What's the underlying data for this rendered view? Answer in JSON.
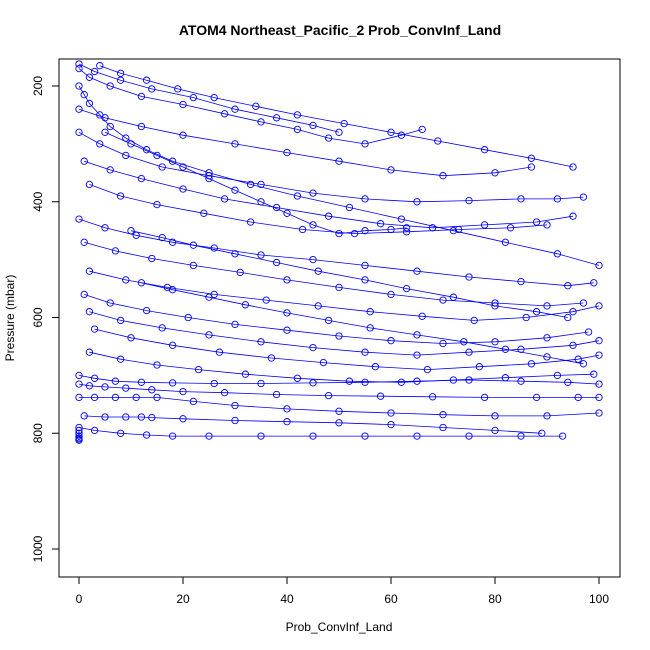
{
  "chart_data": {
    "type": "line",
    "title": "ATOM4 Northeast_Pacific_2 Prob_ConvInf_Land",
    "xlabel": "Prob_ConvInf_Land",
    "ylabel": "Pressure (mbar)",
    "xlim": [
      0,
      100
    ],
    "ylim": [
      1045,
      160
    ],
    "y_reversed": true,
    "x_ticks": [
      0,
      20,
      40,
      60,
      80,
      100
    ],
    "y_ticks": [
      200,
      400,
      600,
      800,
      1000
    ],
    "grid": false,
    "legend": "none",
    "marker": "open-circle",
    "series_color": "#0000ff",
    "series": [
      {
        "x": [
          0,
          3,
          8,
          14,
          22,
          30,
          38,
          45,
          50
        ],
        "y": [
          162,
          175,
          190,
          205,
          220,
          240,
          255,
          268,
          280
        ]
      },
      {
        "x": [
          0,
          2,
          6,
          12,
          20,
          28,
          35,
          42,
          48,
          55,
          62,
          66
        ],
        "y": [
          170,
          185,
          200,
          218,
          232,
          248,
          262,
          275,
          290,
          300,
          285,
          275
        ]
      },
      {
        "x": [
          0,
          5,
          12,
          20,
          30,
          40,
          50,
          60,
          70,
          80,
          87
        ],
        "y": [
          240,
          255,
          270,
          285,
          300,
          315,
          330,
          345,
          355,
          350,
          340
        ]
      },
      {
        "x": [
          0,
          4,
          9,
          16,
          25,
          35,
          45,
          55,
          65,
          75,
          85,
          92,
          97
        ],
        "y": [
          280,
          300,
          320,
          340,
          355,
          370,
          385,
          395,
          400,
          398,
          395,
          395,
          392
        ]
      },
      {
        "x": [
          1,
          6,
          12,
          20,
          28,
          38,
          48,
          58,
          68,
          78,
          88,
          95
        ],
        "y": [
          330,
          345,
          360,
          378,
          395,
          410,
          425,
          438,
          445,
          440,
          435,
          425
        ]
      },
      {
        "x": [
          2,
          8,
          15,
          24,
          33,
          43,
          53,
          63,
          73,
          83,
          90
        ],
        "y": [
          370,
          390,
          405,
          420,
          435,
          448,
          455,
          452,
          448,
          445,
          440
        ]
      },
      {
        "x": [
          0,
          5,
          11,
          18,
          26,
          35,
          45,
          55,
          65,
          75,
          85,
          94,
          99
        ],
        "y": [
          430,
          445,
          458,
          470,
          480,
          492,
          500,
          510,
          520,
          530,
          538,
          545,
          540
        ]
      },
      {
        "x": [
          1,
          7,
          14,
          22,
          31,
          40,
          50,
          60,
          70,
          80,
          90,
          97
        ],
        "y": [
          470,
          485,
          498,
          510,
          522,
          535,
          548,
          560,
          570,
          575,
          580,
          575
        ]
      },
      {
        "x": [
          2,
          9,
          17,
          26,
          36,
          46,
          56,
          66,
          76,
          86,
          95,
          100
        ],
        "y": [
          520,
          535,
          548,
          560,
          570,
          580,
          590,
          598,
          605,
          600,
          590,
          580
        ]
      },
      {
        "x": [
          1,
          6,
          13,
          21,
          30,
          40,
          50,
          60,
          70,
          80,
          90,
          98
        ],
        "y": [
          560,
          575,
          588,
          600,
          612,
          622,
          632,
          640,
          645,
          642,
          635,
          625
        ]
      },
      {
        "x": [
          2,
          8,
          16,
          25,
          35,
          45,
          55,
          65,
          75,
          85,
          95,
          100
        ],
        "y": [
          590,
          605,
          618,
          630,
          642,
          652,
          660,
          665,
          660,
          655,
          648,
          640
        ]
      },
      {
        "x": [
          3,
          10,
          18,
          27,
          37,
          47,
          57,
          67,
          77,
          87,
          96,
          100
        ],
        "y": [
          620,
          635,
          648,
          660,
          670,
          678,
          685,
          690,
          685,
          680,
          672,
          665
        ]
      },
      {
        "x": [
          2,
          8,
          15,
          23,
          32,
          42,
          52,
          62,
          72,
          82,
          92,
          99
        ],
        "y": [
          660,
          672,
          682,
          690,
          698,
          705,
          710,
          712,
          708,
          704,
          700,
          698
        ]
      },
      {
        "x": [
          0,
          3,
          7,
          12,
          18,
          26,
          35,
          45,
          55,
          65,
          75,
          85,
          94,
          100
        ],
        "y": [
          700,
          705,
          710,
          712,
          713,
          714,
          714,
          713,
          712,
          710,
          708,
          710,
          712,
          715
        ]
      },
      {
        "x": [
          0,
          2,
          5,
          9,
          14,
          20,
          28,
          38,
          48,
          58,
          68,
          78,
          88,
          96,
          100
        ],
        "y": [
          715,
          718,
          720,
          722,
          725,
          728,
          730,
          733,
          735,
          736,
          737,
          738,
          738,
          738,
          738
        ]
      },
      {
        "x": [
          0,
          3,
          7,
          11,
          15,
          22,
          30,
          40,
          50,
          60,
          70,
          80,
          90,
          100
        ],
        "y": [
          738,
          738,
          738,
          738,
          738,
          745,
          752,
          758,
          762,
          765,
          768,
          770,
          770,
          765
        ]
      },
      {
        "x": [
          1,
          5,
          9,
          12,
          14,
          20,
          30,
          40,
          50,
          60,
          70,
          80,
          89
        ],
        "y": [
          770,
          772,
          772,
          772,
          773,
          775,
          778,
          780,
          782,
          785,
          790,
          795,
          800
        ]
      },
      {
        "x": [
          0,
          3,
          8,
          13,
          18,
          25,
          35,
          45,
          55,
          65,
          75,
          85,
          93
        ],
        "y": [
          790,
          795,
          800,
          803,
          805,
          805,
          805,
          805,
          805,
          805,
          805,
          805,
          805
        ]
      },
      {
        "x": [
          0,
          0,
          0,
          0,
          0,
          0
        ],
        "y": [
          795,
          800,
          805,
          808,
          810,
          812
        ]
      },
      {
        "x": [
          0,
          1,
          2,
          4,
          6,
          9,
          13,
          18,
          25,
          33,
          42,
          52,
          62,
          72,
          82,
          92,
          100
        ],
        "y": [
          200,
          215,
          230,
          250,
          270,
          290,
          310,
          330,
          350,
          370,
          390,
          410,
          430,
          450,
          470,
          490,
          510
        ]
      },
      {
        "x": [
          5,
          10,
          15,
          20,
          25,
          30,
          35,
          40,
          45,
          50,
          55,
          60,
          63
        ],
        "y": [
          280,
          300,
          320,
          340,
          360,
          380,
          400,
          420,
          440,
          455,
          450,
          448,
          445
        ]
      },
      {
        "x": [
          10,
          16,
          22,
          30,
          38,
          46,
          55,
          63,
          72,
          80,
          88,
          94
        ],
        "y": [
          450,
          462,
          475,
          490,
          505,
          520,
          535,
          550,
          565,
          580,
          590,
          600
        ]
      },
      {
        "x": [
          12,
          18,
          25,
          32,
          40,
          48,
          56,
          65,
          74,
          82,
          90,
          97
        ],
        "y": [
          540,
          552,
          565,
          578,
          592,
          605,
          618,
          630,
          642,
          655,
          668,
          680
        ]
      },
      {
        "x": [
          4,
          8,
          13,
          19,
          26,
          34,
          42,
          51,
          60,
          69,
          78,
          87,
          95
        ],
        "y": [
          165,
          178,
          190,
          205,
          220,
          235,
          250,
          265,
          280,
          295,
          310,
          325,
          340
        ]
      }
    ]
  }
}
